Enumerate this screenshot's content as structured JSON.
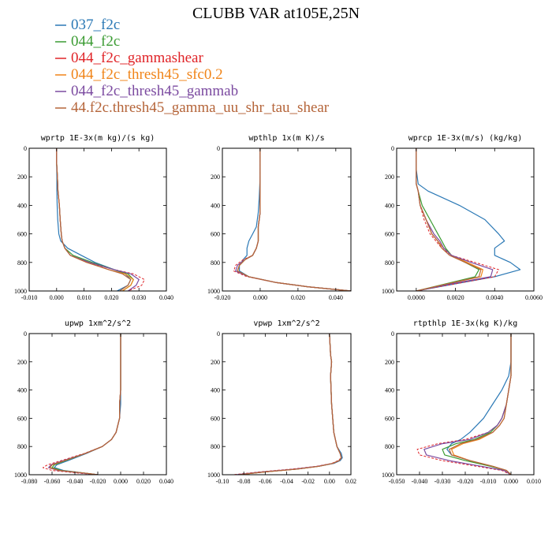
{
  "figure_title": "CLUBB VAR at105E,25N",
  "legend": [
    {
      "label": "037_f2c",
      "color": "#2a78b5"
    },
    {
      "label": "044_f2c",
      "color": "#3a9b32"
    },
    {
      "label": "044_f2c_gammashear",
      "color": "#e02428"
    },
    {
      "label": "044_f2c_thresh45_sfc0.2",
      "color": "#f08418"
    },
    {
      "label": "044_f2c_thresh45_gammab",
      "color": "#7b4aa0"
    },
    {
      "label": "44.f2c.thresh45_gamma_uu_shr_tau_shear",
      "color": "#b5653a"
    }
  ],
  "chart_data": [
    {
      "type": "line",
      "title": "wprtp  1E-3x(m kg)/(s kg)",
      "xlim": [
        -0.01,
        0.04
      ],
      "ylim": [
        1000,
        0
      ],
      "xticks": [
        "-0.010",
        "0.000",
        "0.010",
        "0.020",
        "0.030",
        "0.040"
      ],
      "xtick_values": [
        -0.01,
        0.0,
        0.01,
        0.02,
        0.03,
        0.04
      ],
      "yticks": [
        "0",
        "200",
        "400",
        "600",
        "800",
        "1000"
      ],
      "ytick_values": [
        0,
        200,
        400,
        600,
        800,
        1000
      ],
      "y": [
        0,
        100,
        200,
        300,
        400,
        500,
        600,
        650,
        700,
        750,
        800,
        850,
        880,
        920,
        960,
        1000
      ],
      "series": [
        {
          "values": [
            0.0,
            0.0,
            0.0001,
            0.0001,
            0.0002,
            0.0004,
            0.0008,
            0.0015,
            0.004,
            0.009,
            0.014,
            0.021,
            0.025,
            0.027,
            0.026,
            0.022
          ]
        },
        {
          "values": [
            0.0,
            0.0,
            0.0003,
            0.0005,
            0.001,
            0.0013,
            0.0017,
            0.002,
            0.003,
            0.006,
            0.013,
            0.021,
            0.026,
            0.028,
            0.027,
            0.024
          ]
        },
        {
          "values": [
            0.0,
            0.0,
            0.0003,
            0.0005,
            0.001,
            0.0013,
            0.0017,
            0.002,
            0.003,
            0.005,
            0.011,
            0.021,
            0.028,
            0.032,
            0.031,
            0.026
          ]
        },
        {
          "values": [
            0.0,
            0.0,
            0.0003,
            0.0005,
            0.001,
            0.0013,
            0.0017,
            0.002,
            0.003,
            0.005,
            0.011,
            0.019,
            0.025,
            0.028,
            0.027,
            0.024
          ]
        },
        {
          "values": [
            0.0,
            0.0,
            0.0003,
            0.0005,
            0.001,
            0.0013,
            0.0017,
            0.002,
            0.003,
            0.005,
            0.012,
            0.021,
            0.027,
            0.03,
            0.029,
            0.026
          ]
        },
        {
          "values": [
            0.0,
            0.0,
            0.0003,
            0.0005,
            0.001,
            0.0013,
            0.0017,
            0.002,
            0.003,
            0.005,
            0.011,
            0.019,
            0.024,
            0.027,
            0.026,
            0.023
          ]
        }
      ]
    },
    {
      "type": "line",
      "title": "wpthlp  1x(m K)/s",
      "xlim": [
        -0.02,
        0.048
      ],
      "ylim": [
        1000,
        0
      ],
      "xticks": [
        "-0.020",
        "0.000",
        "0.020",
        "0.040"
      ],
      "xtick_values": [
        -0.02,
        0.0,
        0.02,
        0.04
      ],
      "yticks": [
        "0",
        "200",
        "400",
        "600",
        "800",
        "1000"
      ],
      "ytick_values": [
        0,
        200,
        400,
        600,
        800,
        1000
      ],
      "y": [
        0,
        200,
        350,
        450,
        550,
        600,
        650,
        700,
        750,
        780,
        820,
        860,
        900,
        940,
        970,
        1000
      ],
      "series": [
        {
          "values": [
            0.0,
            0.0,
            -0.0005,
            -0.001,
            -0.002,
            -0.004,
            -0.006,
            -0.007,
            -0.007,
            -0.009,
            -0.011,
            -0.011,
            -0.006,
            0.008,
            0.025,
            0.048
          ]
        },
        {
          "values": [
            0.0,
            0.0,
            0.0,
            0.0,
            -0.001,
            -0.001,
            -0.001,
            -0.002,
            -0.004,
            -0.008,
            -0.011,
            -0.012,
            -0.006,
            0.008,
            0.025,
            0.048
          ]
        },
        {
          "values": [
            0.0,
            0.0,
            0.0,
            0.0,
            -0.001,
            -0.001,
            -0.001,
            -0.002,
            -0.004,
            -0.009,
            -0.013,
            -0.014,
            -0.007,
            0.008,
            0.025,
            0.048
          ]
        },
        {
          "values": [
            0.0,
            0.0,
            0.0,
            0.0,
            -0.001,
            -0.001,
            -0.001,
            -0.002,
            -0.004,
            -0.008,
            -0.011,
            -0.012,
            -0.006,
            0.008,
            0.025,
            0.048
          ]
        },
        {
          "values": [
            0.0,
            0.0,
            0.0,
            0.0,
            -0.001,
            -0.001,
            -0.001,
            -0.002,
            -0.004,
            -0.008,
            -0.012,
            -0.013,
            -0.006,
            0.008,
            0.025,
            0.048
          ]
        },
        {
          "values": [
            0.0,
            0.0,
            0.0,
            0.0,
            -0.001,
            -0.001,
            -0.001,
            -0.002,
            -0.004,
            -0.008,
            -0.011,
            -0.012,
            -0.006,
            0.008,
            0.025,
            0.048
          ]
        }
      ]
    },
    {
      "type": "line",
      "title": "wprcp  1E-3x(m/s) (kg/kg)",
      "xlim": [
        -0.001,
        0.006
      ],
      "ylim": [
        1000,
        0
      ],
      "xticks": [
        "0.0000",
        "0.0020",
        "0.0040",
        "0.0060"
      ],
      "xtick_values": [
        0.0,
        0.002,
        0.004,
        0.006
      ],
      "yticks": [
        "0",
        "200",
        "400",
        "600",
        "800",
        "1000"
      ],
      "ytick_values": [
        0,
        200,
        400,
        600,
        800,
        1000
      ],
      "y": [
        0,
        150,
        250,
        300,
        400,
        500,
        600,
        650,
        700,
        750,
        800,
        850,
        900,
        950,
        1000
      ],
      "series": [
        {
          "values": [
            0.0,
            0.0,
            0.0001,
            0.0006,
            0.0022,
            0.0035,
            0.0042,
            0.0045,
            0.004,
            0.004,
            0.0048,
            0.0053,
            0.004,
            0.002,
            0.0
          ]
        },
        {
          "values": [
            0.0,
            0.0,
            0.0,
            0.0001,
            0.0003,
            0.0007,
            0.0011,
            0.0013,
            0.0015,
            0.0018,
            0.0025,
            0.0032,
            0.003,
            0.0015,
            0.0
          ]
        },
        {
          "values": [
            0.0,
            0.0,
            0.0,
            0.0001,
            0.0002,
            0.0004,
            0.0007,
            0.001,
            0.0013,
            0.0018,
            0.003,
            0.0042,
            0.004,
            0.002,
            0.0
          ]
        },
        {
          "values": [
            0.0,
            0.0,
            0.0,
            0.0001,
            0.0002,
            0.0005,
            0.0008,
            0.0011,
            0.0014,
            0.0018,
            0.0026,
            0.0034,
            0.0033,
            0.0016,
            0.0
          ]
        },
        {
          "values": [
            0.0,
            0.0,
            0.0,
            0.0001,
            0.0002,
            0.0005,
            0.0009,
            0.0012,
            0.0014,
            0.0018,
            0.0028,
            0.0039,
            0.0038,
            0.0018,
            0.0
          ]
        },
        {
          "values": [
            0.0,
            0.0,
            0.0,
            0.0001,
            0.0002,
            0.0005,
            0.0008,
            0.0011,
            0.0013,
            0.0017,
            0.0025,
            0.0033,
            0.0032,
            0.0016,
            0.0
          ]
        }
      ]
    },
    {
      "type": "line",
      "title": "upwp  1xm^2/s^2",
      "xlim": [
        -0.08,
        0.04
      ],
      "ylim": [
        1000,
        0
      ],
      "xticks": [
        "-0.080",
        "-0.060",
        "-0.040",
        "-0.020",
        "0.000",
        "0.020",
        "0.040"
      ],
      "xtick_values": [
        -0.08,
        -0.06,
        -0.04,
        -0.02,
        0.0,
        0.02,
        0.04
      ],
      "yticks": [
        "0",
        "200",
        "400",
        "600",
        "800",
        "1000"
      ],
      "ytick_values": [
        0,
        200,
        400,
        600,
        800,
        1000
      ],
      "y": [
        0,
        200,
        400,
        500,
        600,
        700,
        750,
        800,
        850,
        900,
        930,
        950,
        970,
        990,
        1000
      ],
      "series": [
        {
          "values": [
            0.0,
            0.0,
            0.0,
            0.0,
            -0.001,
            -0.004,
            -0.008,
            -0.016,
            -0.03,
            -0.046,
            -0.056,
            -0.058,
            -0.05,
            -0.03,
            -0.02
          ]
        },
        {
          "values": [
            0.0,
            0.0,
            0.0,
            -0.001,
            -0.001,
            -0.004,
            -0.008,
            -0.016,
            -0.031,
            -0.048,
            -0.058,
            -0.06,
            -0.052,
            -0.03,
            -0.02
          ]
        },
        {
          "values": [
            0.0,
            0.0,
            0.0,
            -0.001,
            -0.001,
            -0.004,
            -0.008,
            -0.016,
            -0.032,
            -0.052,
            -0.064,
            -0.068,
            -0.06,
            -0.035,
            -0.02
          ]
        },
        {
          "values": [
            0.0,
            0.0,
            0.0,
            -0.001,
            -0.001,
            -0.004,
            -0.008,
            -0.016,
            -0.031,
            -0.049,
            -0.06,
            -0.062,
            -0.054,
            -0.03,
            -0.02
          ]
        },
        {
          "values": [
            0.0,
            0.0,
            0.0,
            -0.001,
            -0.001,
            -0.004,
            -0.008,
            -0.016,
            -0.031,
            -0.05,
            -0.061,
            -0.063,
            -0.055,
            -0.032,
            -0.02
          ]
        },
        {
          "values": [
            0.0,
            0.0,
            0.0,
            -0.001,
            -0.001,
            -0.004,
            -0.008,
            -0.016,
            -0.031,
            -0.049,
            -0.06,
            -0.062,
            -0.054,
            -0.03,
            -0.02
          ]
        }
      ]
    },
    {
      "type": "line",
      "title": "vpwp  1xm^2/s^2",
      "xlim": [
        -0.1,
        0.02
      ],
      "ylim": [
        1000,
        0
      ],
      "xticks": [
        "-0.10",
        "-0.08",
        "-0.06",
        "-0.04",
        "-0.02",
        "0.00",
        "0.02"
      ],
      "xtick_values": [
        -0.1,
        -0.08,
        -0.06,
        -0.04,
        -0.02,
        0.0,
        0.02
      ],
      "yticks": [
        "0",
        "200",
        "400",
        "600",
        "800",
        "1000"
      ],
      "ytick_values": [
        0,
        200,
        400,
        600,
        800,
        1000
      ],
      "y": [
        0,
        150,
        200,
        300,
        500,
        700,
        800,
        850,
        880,
        900,
        920,
        940,
        960,
        980,
        1000
      ],
      "series": [
        {
          "values": [
            0.0,
            0.001,
            0.002,
            0.001,
            0.002,
            0.004,
            0.007,
            0.011,
            0.012,
            0.01,
            0.004,
            -0.01,
            -0.03,
            -0.06,
            -0.085
          ]
        },
        {
          "values": [
            0.0,
            0.001,
            0.002,
            0.001,
            0.002,
            0.004,
            0.007,
            0.01,
            0.011,
            0.009,
            0.003,
            -0.01,
            -0.03,
            -0.06,
            -0.085
          ]
        },
        {
          "values": [
            0.0,
            0.001,
            0.002,
            0.001,
            0.002,
            0.004,
            0.007,
            0.01,
            0.011,
            0.008,
            0.002,
            -0.012,
            -0.035,
            -0.065,
            -0.09
          ]
        },
        {
          "values": [
            0.0,
            0.001,
            0.002,
            0.001,
            0.002,
            0.004,
            0.007,
            0.01,
            0.011,
            0.009,
            0.003,
            -0.01,
            -0.03,
            -0.06,
            -0.085
          ]
        },
        {
          "values": [
            0.0,
            0.001,
            0.002,
            0.001,
            0.002,
            0.004,
            0.007,
            0.01,
            0.011,
            0.009,
            0.003,
            -0.011,
            -0.032,
            -0.062,
            -0.087
          ]
        },
        {
          "values": [
            0.0,
            0.001,
            0.002,
            0.001,
            0.002,
            0.004,
            0.007,
            0.01,
            0.011,
            0.009,
            0.003,
            -0.01,
            -0.03,
            -0.06,
            -0.085
          ]
        }
      ]
    },
    {
      "type": "line",
      "title": "rtpthlp  1E-3x(kg K)/kg",
      "xlim": [
        -0.05,
        0.01
      ],
      "ylim": [
        1000,
        0
      ],
      "xticks": [
        "-0.050",
        "-0.040",
        "-0.030",
        "-0.020",
        "-0.010",
        "0.000",
        "0.010"
      ],
      "xtick_values": [
        -0.05,
        -0.04,
        -0.03,
        -0.02,
        -0.01,
        0.0,
        0.01
      ],
      "yticks": [
        "0",
        "200",
        "400",
        "600",
        "800",
        "1000"
      ],
      "ytick_values": [
        0,
        200,
        400,
        600,
        800,
        1000
      ],
      "y": [
        0,
        200,
        300,
        400,
        500,
        600,
        650,
        700,
        750,
        780,
        820,
        860,
        900,
        940,
        970,
        1000
      ],
      "series": [
        {
          "values": [
            0.0,
            0.0,
            -0.001,
            -0.004,
            -0.008,
            -0.012,
            -0.015,
            -0.018,
            -0.022,
            -0.026,
            -0.028,
            -0.026,
            -0.018,
            -0.008,
            -0.002,
            0.0
          ]
        },
        {
          "values": [
            0.0,
            0.0,
            0.0,
            -0.001,
            -0.002,
            -0.004,
            -0.006,
            -0.009,
            -0.016,
            -0.024,
            -0.03,
            -0.029,
            -0.02,
            -0.009,
            -0.002,
            0.0
          ]
        },
        {
          "values": [
            0.0,
            0.0,
            0.0,
            -0.001,
            -0.002,
            -0.004,
            -0.006,
            -0.01,
            -0.02,
            -0.032,
            -0.041,
            -0.04,
            -0.03,
            -0.015,
            -0.004,
            0.0
          ]
        },
        {
          "values": [
            0.0,
            0.0,
            0.0,
            -0.001,
            -0.002,
            -0.003,
            -0.005,
            -0.008,
            -0.014,
            -0.021,
            -0.026,
            -0.025,
            -0.018,
            -0.008,
            -0.002,
            0.0
          ]
        },
        {
          "values": [
            0.0,
            0.0,
            0.0,
            -0.001,
            -0.002,
            -0.004,
            -0.006,
            -0.01,
            -0.018,
            -0.03,
            -0.038,
            -0.037,
            -0.027,
            -0.013,
            -0.003,
            0.0
          ]
        },
        {
          "values": [
            0.0,
            0.0,
            0.0,
            -0.001,
            -0.002,
            -0.003,
            -0.005,
            -0.008,
            -0.015,
            -0.022,
            -0.027,
            -0.026,
            -0.018,
            -0.008,
            -0.002,
            0.0
          ]
        }
      ]
    }
  ]
}
